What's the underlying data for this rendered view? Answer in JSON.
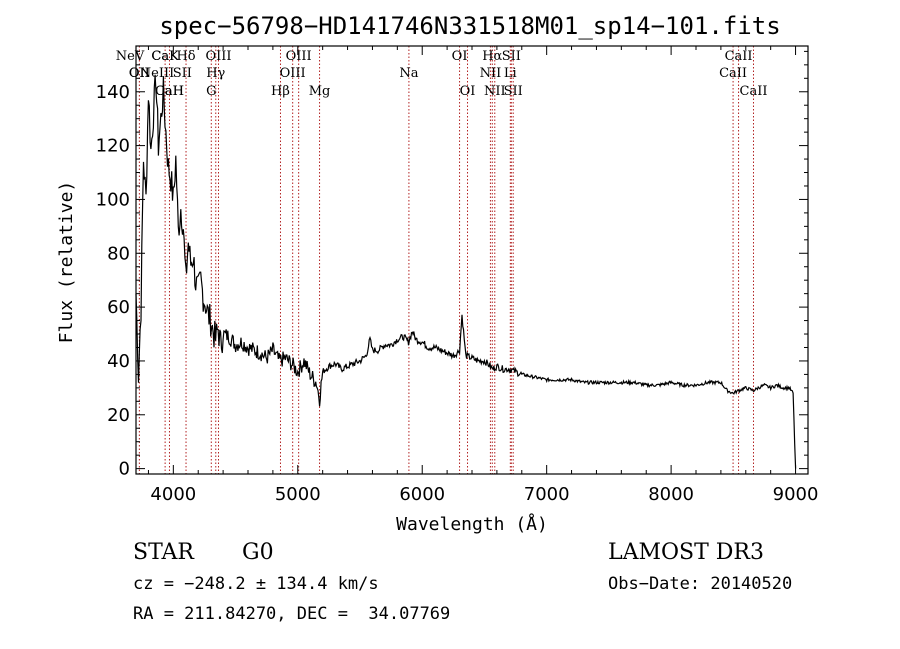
{
  "chart_data": {
    "type": "line",
    "title": "spec−56798−HD141746N331518M01_sp14−101.fits",
    "xlabel": "Wavelength (Å)",
    "ylabel": "Flux (relative)",
    "xlim": [
      3700,
      9100
    ],
    "ylim": [
      -2,
      157
    ],
    "x_ticks": [
      4000,
      5000,
      6000,
      7000,
      8000,
      9000
    ],
    "y_ticks": [
      0,
      20,
      40,
      60,
      80,
      100,
      120,
      140
    ],
    "grid": false,
    "line_color": "#000000",
    "marker_color": "#b22222",
    "spectrum": {
      "x": [
        3700,
        3720,
        3740,
        3760,
        3780,
        3800,
        3820,
        3840,
        3860,
        3880,
        3900,
        3920,
        3940,
        3960,
        3980,
        4000,
        4020,
        4040,
        4060,
        4080,
        4100,
        4120,
        4140,
        4160,
        4180,
        4200,
        4220,
        4240,
        4260,
        4280,
        4300,
        4320,
        4340,
        4360,
        4380,
        4400,
        4450,
        4500,
        4550,
        4600,
        4650,
        4700,
        4750,
        4800,
        4850,
        4900,
        4950,
        5000,
        5050,
        5100,
        5150,
        5175,
        5200,
        5250,
        5300,
        5350,
        5400,
        5450,
        5500,
        5550,
        5580,
        5600,
        5650,
        5700,
        5750,
        5800,
        5850,
        5890,
        5920,
        5950,
        6000,
        6050,
        6100,
        6150,
        6200,
        6250,
        6280,
        6300,
        6320,
        6350,
        6400,
        6450,
        6500,
        6550,
        6564,
        6600,
        6650,
        6700,
        6750,
        6800,
        6900,
        7000,
        7100,
        7200,
        7300,
        7400,
        7500,
        7600,
        7700,
        7800,
        7900,
        8000,
        8100,
        8200,
        8300,
        8400,
        8450,
        8498,
        8542,
        8600,
        8662,
        8700,
        8750,
        8800,
        8850,
        8900,
        8950,
        8980,
        9000
      ],
      "y": [
        65,
        35,
        60,
        115,
        100,
        140,
        118,
        132,
        145,
        120,
        130,
        140,
        125,
        112,
        108,
        100,
        115,
        88,
        97,
        90,
        70,
        84,
        76,
        79,
        69,
        66,
        70,
        64,
        61,
        57,
        55,
        51,
        48,
        52,
        46,
        50,
        49,
        46,
        47,
        45,
        44,
        43,
        41,
        44,
        40,
        41,
        39,
        36,
        40,
        35,
        32,
        26,
        36,
        38,
        39,
        37,
        38,
        39,
        40,
        42,
        48,
        44,
        44,
        46,
        46,
        48,
        49,
        47,
        51,
        48,
        47,
        45,
        45,
        44,
        43,
        42,
        43,
        44,
        57,
        42,
        41,
        40,
        40,
        38,
        37,
        38,
        37,
        37,
        36,
        35,
        34,
        33,
        33,
        33,
        32,
        32,
        32,
        32,
        32,
        31,
        31,
        32,
        31,
        31,
        32,
        32,
        29,
        28,
        29,
        30,
        29,
        30,
        31,
        30,
        31,
        30,
        30,
        28,
        0
      ]
    },
    "line_markers": [
      {
        "label": "OII",
        "wavelength": 3727,
        "row": 1
      },
      {
        "label": "CaK",
        "wavelength": 3934,
        "row": 0
      },
      {
        "label": "CaH",
        "wavelength": 3969,
        "row": 2
      },
      {
        "label": "Hδ",
        "wavelength": 4102,
        "row": 0
      },
      {
        "label": "G",
        "wavelength": 4305,
        "row": 2
      },
      {
        "label": "Hγ",
        "wavelength": 4341,
        "row": 1
      },
      {
        "label": "OIII",
        "wavelength": 4363,
        "row": 0
      },
      {
        "label": "Hβ",
        "wavelength": 4861,
        "row": 2
      },
      {
        "label": "OIII",
        "wavelength": 4959,
        "row": 1
      },
      {
        "label": "OIII",
        "wavelength": 5007,
        "row": 0
      },
      {
        "label": "Mg",
        "wavelength": 5175,
        "row": 2
      },
      {
        "label": "Na",
        "wavelength": 5893,
        "row": 1
      },
      {
        "label": "OI",
        "wavelength": 6300,
        "row": 0
      },
      {
        "label": "OI",
        "wavelength": 6364,
        "row": 2
      },
      {
        "label": "NII",
        "wavelength": 6548,
        "row": 1
      },
      {
        "label": "Hα",
        "wavelength": 6563,
        "row": 0
      },
      {
        "label": "NII",
        "wavelength": 6583,
        "row": 2
      },
      {
        "label": "Li",
        "wavelength": 6708,
        "row": 1
      },
      {
        "label": "SII",
        "wavelength": 6716,
        "row": 0
      },
      {
        "label": "SII",
        "wavelength": 6731,
        "row": 2
      },
      {
        "label": "CaII",
        "wavelength": 8498,
        "row": 1
      },
      {
        "label": "CaII",
        "wavelength": 8542,
        "row": 0
      },
      {
        "label": "CaII",
        "wavelength": 8662,
        "row": 2
      }
    ],
    "blue_cluster_labels": [
      {
        "label": "NeV",
        "wavelength": 3426,
        "row": 0
      },
      {
        "label": "OII",
        "wavelength": 3727,
        "row": 1
      },
      {
        "label": "NeIII",
        "wavelength": 3869,
        "row": 1
      },
      {
        "label": "CaK",
        "wavelength": 3934,
        "row": 0
      },
      {
        "label": "CaH",
        "wavelength": 3969,
        "row": 2
      },
      {
        "label": "SII",
        "wavelength": 4072,
        "row": 1
      }
    ]
  },
  "info": {
    "object_class": "STAR",
    "subclass": "G0",
    "survey": "LAMOST DR3",
    "redshift": "cz = −248.2 ± 134.4 km/s",
    "obs_date": "Obs−Date: 20140520",
    "coords": "RA = 211.84270, DEC =  34.07769"
  }
}
